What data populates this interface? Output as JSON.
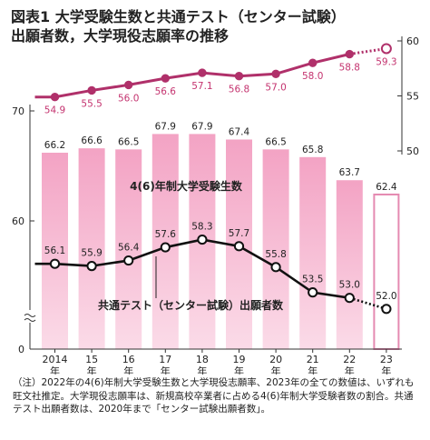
{
  "title_line1": "図表1 大学受験生数と共通テスト（センター試験）",
  "title_line2": "出願者数，大学現役志願率の推移",
  "chart_data": {
    "type": "bar+line",
    "categories": [
      {
        "year": "2014",
        "unit": "年"
      },
      {
        "year": "15",
        "unit": "年"
      },
      {
        "year": "16",
        "unit": "年"
      },
      {
        "year": "17",
        "unit": "年"
      },
      {
        "year": "18",
        "unit": "年"
      },
      {
        "year": "19",
        "unit": "年"
      },
      {
        "year": "20",
        "unit": "年"
      },
      {
        "year": "21",
        "unit": "年"
      },
      {
        "year": "22",
        "unit": "年"
      },
      {
        "year": "23",
        "unit": "年"
      }
    ],
    "left_axis_ticks": [
      "70",
      "60",
      "0"
    ],
    "right_axis_ticks": [
      "60",
      "55",
      "50"
    ],
    "bars": {
      "name": "4(6)年制大学受験生数",
      "values": [
        66.2,
        66.6,
        66.5,
        67.9,
        67.9,
        67.4,
        66.5,
        65.8,
        63.7,
        62.4
      ],
      "labels": [
        "66.2",
        "66.6",
        "66.5",
        "67.9",
        "67.9",
        "67.4",
        "66.5",
        "65.8",
        "63.7",
        "62.4"
      ],
      "estimated_last": true
    },
    "applicants_line": {
      "name": "共通テスト（センター試験）出願者数",
      "values": [
        56.1,
        55.9,
        56.4,
        57.6,
        58.3,
        57.7,
        55.8,
        53.5,
        53.0,
        52.0
      ],
      "labels": [
        "56.1",
        "55.9",
        "56.4",
        "57.6",
        "58.3",
        "57.7",
        "55.8",
        "53.5",
        "53.0",
        "52.0"
      ]
    },
    "rate_line": {
      "values": [
        54.9,
        55.5,
        56.0,
        56.6,
        57.1,
        56.8,
        57.0,
        58.0,
        58.8,
        59.3
      ],
      "labels": [
        "54.9",
        "55.5",
        "56.0",
        "56.6",
        "57.1",
        "56.8",
        "57.0",
        "58.0",
        "58.8",
        "59.3"
      ],
      "ylim": [
        50,
        60
      ]
    },
    "colors": {
      "bar_fill": "#f6bfd7",
      "bar_fill_top": "#f4a9c8",
      "rate_line": "#b0306a",
      "rate_label": "#c4336f",
      "applicant_line": "#111111"
    }
  },
  "note": "（注）2022年の4(6)年制大学受験生数と大学現役志願率、2023年の全ての数値は、いずれも旺文社推定。大学現役志願率は、新規高校卒業者に占める4(6)年制大学受験者数の割合。共通テスト出願者数は、2020年まで「センター試験出願者数」。"
}
